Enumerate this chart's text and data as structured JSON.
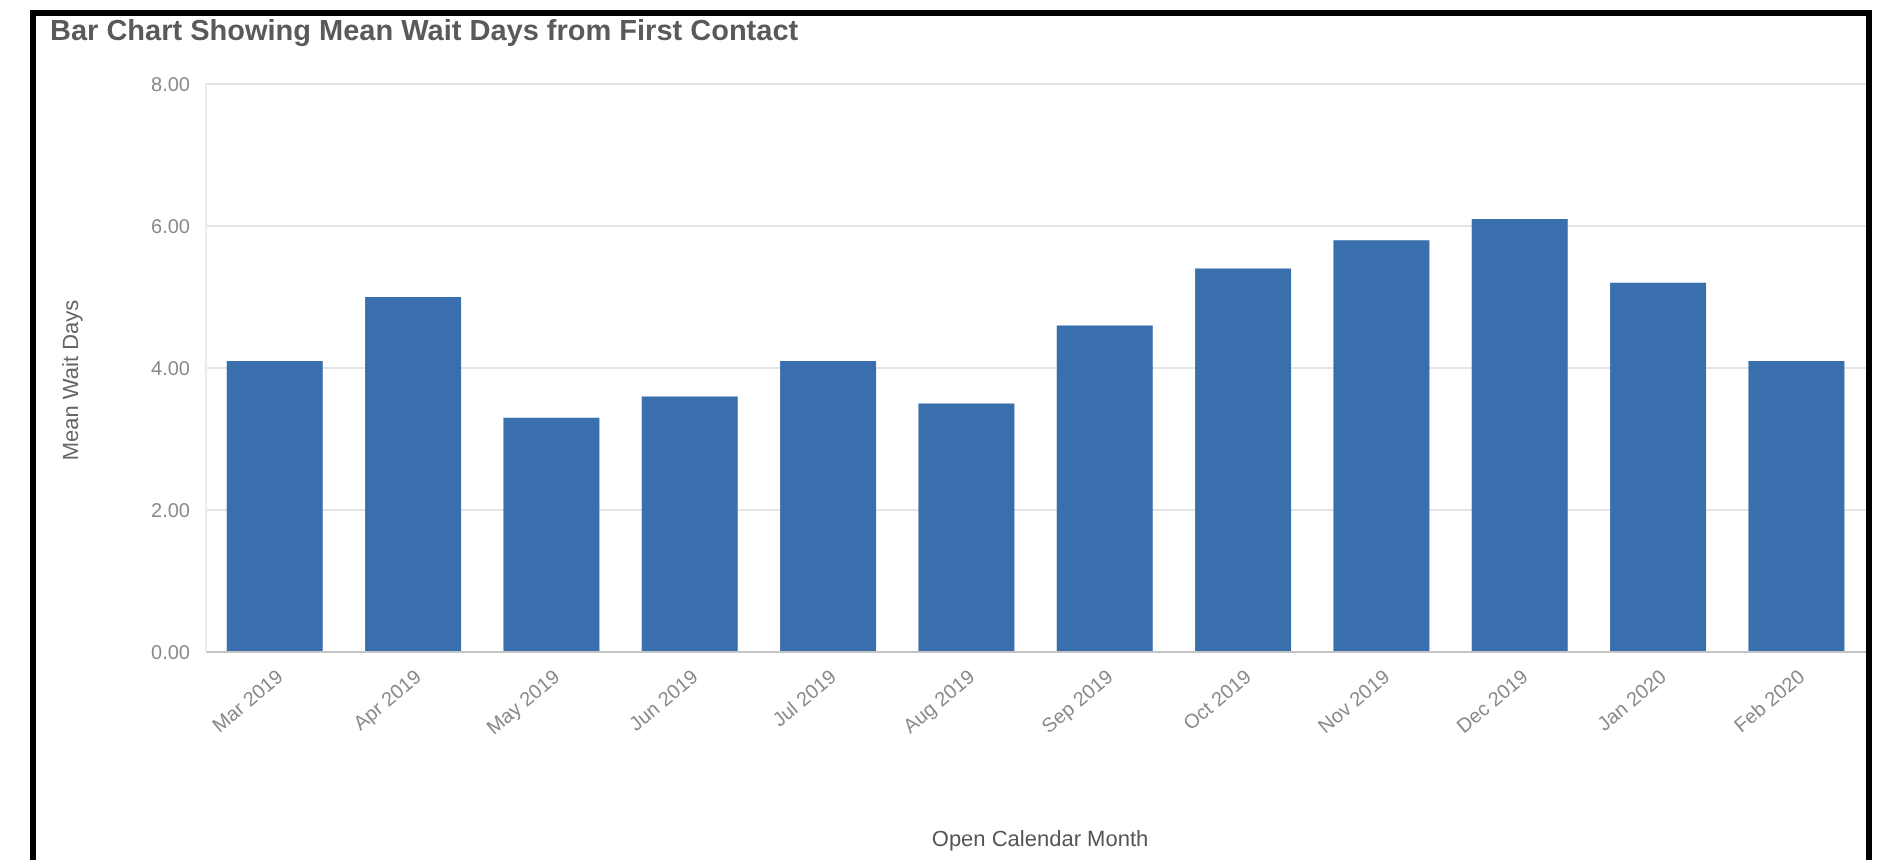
{
  "chart_data": {
    "type": "bar",
    "title": "Bar Chart Showing Mean Wait Days from First Contact",
    "xlabel": "Open Calendar Month",
    "ylabel": "Mean Wait Days",
    "categories": [
      "Mar 2019",
      "Apr 2019",
      "May 2019",
      "Jun 2019",
      "Jul 2019",
      "Aug 2019",
      "Sep 2019",
      "Oct 2019",
      "Nov 2019",
      "Dec 2019",
      "Jan 2020",
      "Feb 2020"
    ],
    "values": [
      4.1,
      5.0,
      3.3,
      3.6,
      4.1,
      3.5,
      4.6,
      5.4,
      5.8,
      6.1,
      5.2,
      4.1
    ],
    "color": "#3a6fae",
    "ylim": [
      0,
      8
    ],
    "yticks": [
      {
        "value": 0,
        "label": "0.00"
      },
      {
        "value": 2,
        "label": "2.00"
      },
      {
        "value": 4,
        "label": "4.00"
      },
      {
        "value": 6,
        "label": "6.00"
      },
      {
        "value": 8,
        "label": "8.00"
      }
    ],
    "grid": "y"
  }
}
